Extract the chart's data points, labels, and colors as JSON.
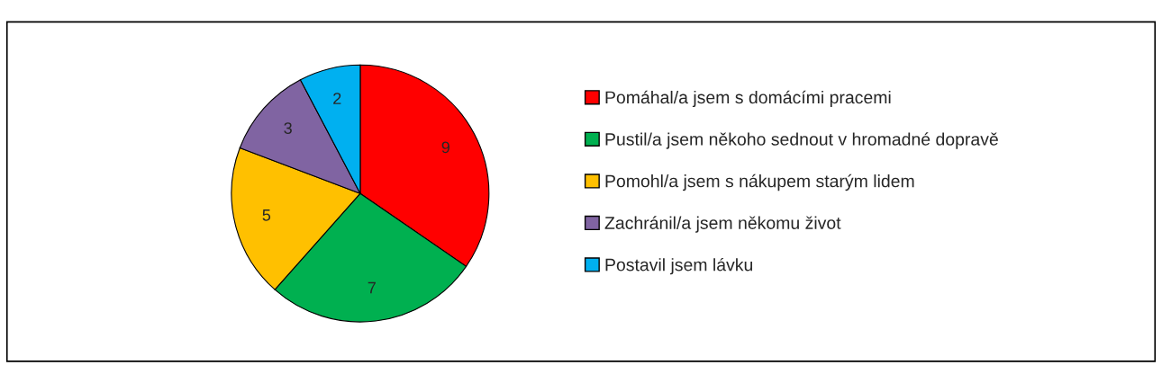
{
  "chart_data": {
    "type": "pie",
    "categories": [
      "Pomáhal/a jsem s domácími pracemi",
      "Pustil/a jsem někoho sednout v hromadné dopravě",
      "Pomohl/a jsem s nákupem starým lidem",
      "Zachránil/a jsem někomu život",
      "Postavil jsem lávku"
    ],
    "values": [
      9,
      7,
      5,
      3,
      2
    ],
    "colors": [
      "#ff0000",
      "#00b050",
      "#ffc000",
      "#8064a2",
      "#00b0f0"
    ],
    "data_labels": true,
    "legend": "right"
  }
}
